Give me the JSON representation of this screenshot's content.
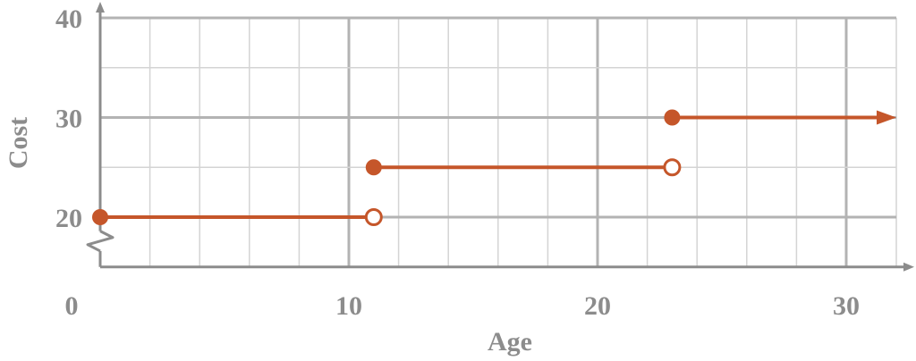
{
  "chart_data": {
    "type": "step",
    "xlabel": "Age",
    "ylabel": "Cost",
    "xlim": [
      0,
      32
    ],
    "ylim": [
      15,
      40
    ],
    "y_axis_break": true,
    "grid": true,
    "x_ticks": [
      0,
      10,
      20,
      30
    ],
    "x_tick_labels": [
      "0",
      "10",
      "20",
      "30"
    ],
    "y_ticks": [
      20,
      30,
      40
    ],
    "y_tick_labels": [
      "20",
      "30",
      "40"
    ],
    "x_grid_step": 2,
    "y_grid_step": 5,
    "segments": [
      {
        "x_start": 0,
        "x_end": 11,
        "y": 20,
        "start_closed": true,
        "end_closed": false,
        "continues": false
      },
      {
        "x_start": 11,
        "x_end": 23,
        "y": 25,
        "start_closed": true,
        "end_closed": false,
        "continues": false
      },
      {
        "x_start": 23,
        "x_end": 32,
        "y": 30,
        "start_closed": true,
        "end_closed": null,
        "continues": true
      }
    ],
    "colors": {
      "series": "#c5562a",
      "grid_major": "#b3b3b3",
      "grid_minor": "#d4d4d4",
      "axis": "#8c8c8c",
      "text": "#8c8c8c"
    }
  }
}
